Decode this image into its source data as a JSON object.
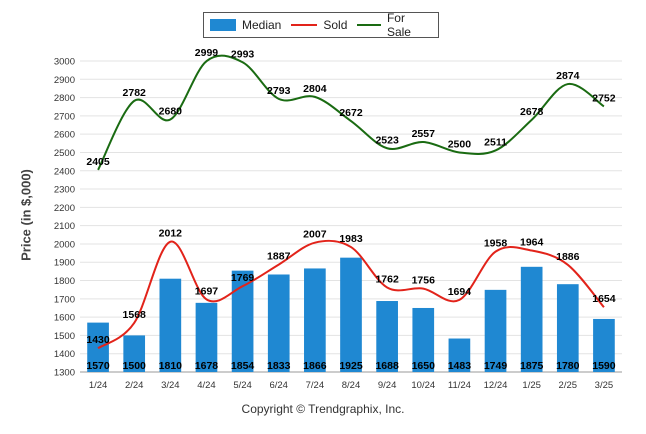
{
  "chart_data": {
    "type": "bar",
    "categories": [
      "1/24",
      "2/24",
      "3/24",
      "4/24",
      "5/24",
      "6/24",
      "7/24",
      "8/24",
      "9/24",
      "10/24",
      "11/24",
      "12/24",
      "1/25",
      "2/25",
      "3/25"
    ],
    "series": [
      {
        "name": "Median",
        "kind": "bar",
        "color": "#1f88d2",
        "values": [
          1570,
          1500,
          1810,
          1678,
          1854,
          1833,
          1866,
          1925,
          1688,
          1650,
          1483,
          1749,
          1875,
          1780,
          1590
        ]
      },
      {
        "name": "Sold",
        "kind": "line",
        "color": "#e2231a",
        "values": [
          1430,
          1568,
          2012,
          1697,
          1769,
          1887,
          2007,
          1983,
          1762,
          1756,
          1694,
          1958,
          1964,
          1886,
          1654
        ]
      },
      {
        "name": "For Sale",
        "kind": "line",
        "color": "#1a6b12",
        "values": [
          2405,
          2782,
          2680,
          2999,
          2993,
          2793,
          2804,
          2672,
          2523,
          2557,
          2500,
          2511,
          2678,
          2874,
          2752
        ]
      }
    ],
    "ylabel": "Price (in $,000)",
    "xlabel": "",
    "ylim": [
      1300,
      3000
    ],
    "yticks": [
      1300,
      1400,
      1500,
      1600,
      1700,
      1800,
      1900,
      2000,
      2100,
      2200,
      2300,
      2400,
      2500,
      2600,
      2700,
      2800,
      2900,
      3000
    ],
    "grid": true,
    "legend_position": "top-center"
  },
  "copyright": "Copyright © Trendgraphix, Inc."
}
